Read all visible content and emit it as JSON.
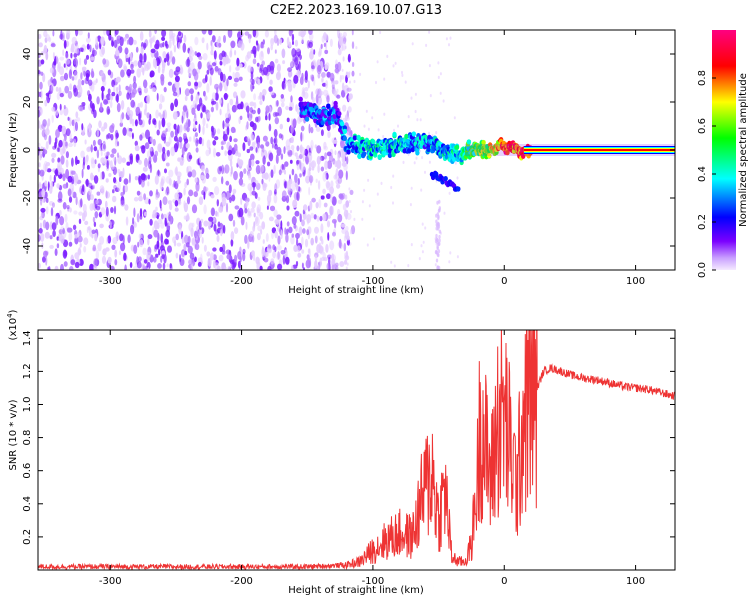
{
  "title": "C2E2.2023.169.10.07.G13",
  "chart_data": [
    {
      "type": "heatmap",
      "xlabel": "Height of straight line (km)",
      "ylabel": "Frequency (Hz)",
      "xlim": [
        -355,
        130
      ],
      "ylim": [
        -50,
        50
      ],
      "xticks": [
        -300,
        -200,
        -100,
        0,
        100
      ],
      "yticks": [
        -40,
        -20,
        0,
        20,
        40
      ],
      "colorbar": {
        "label": "Normalized spectral amplitude",
        "range": [
          0,
          1
        ],
        "ticks": [
          0.0,
          0.2,
          0.4,
          0.6,
          0.8
        ],
        "tick_labels": [
          "0.0",
          "0.2",
          "0.4",
          "0.6",
          "0.8"
        ],
        "colormap": [
          "#f5eaff",
          "#7b00ff",
          "#0000ff",
          "#00ffff",
          "#00ff00",
          "#ffff00",
          "#ff0000",
          "#ff0080"
        ]
      },
      "noise_region": {
        "x_range": [
          -355,
          -125
        ],
        "mean_amplitude": 0.15
      },
      "signal_track": {
        "x": [
          -155,
          -140,
          -128,
          -120,
          -100,
          -80,
          -60,
          -45,
          -35,
          -25,
          -15,
          -5,
          0,
          10,
          20,
          130
        ],
        "y": [
          18,
          14,
          16,
          3,
          0,
          3,
          3,
          0,
          -2,
          0,
          0,
          1,
          2,
          0,
          0,
          0
        ],
        "amplitude": [
          0.2,
          0.25,
          0.2,
          0.3,
          0.35,
          0.35,
          0.3,
          0.35,
          0.4,
          0.5,
          0.6,
          0.7,
          0.85,
          0.8,
          0.9,
          0.9
        ]
      },
      "secondary_track": {
        "x": [
          -55,
          -35
        ],
        "y": [
          -10,
          -16
        ],
        "amplitude": 0.15
      }
    },
    {
      "type": "line",
      "xlabel": "Height of straight line (km)",
      "ylabel": "SNR (10 * v/v)",
      "yscale_label": "(x10",
      "yscale_exponent": "4",
      "yscale_close": ")",
      "xlim": [
        -355,
        130
      ],
      "ylim": [
        0,
        1.45
      ],
      "xticks": [
        -300,
        -200,
        -100,
        0,
        100
      ],
      "yticks": [
        0.2,
        0.4,
        0.6,
        0.8,
        1.0,
        1.2,
        1.4
      ],
      "ytick_labels": [
        "0.2",
        "0.4",
        "0.6",
        "0.8",
        "1.0",
        "1.2",
        "1.4"
      ],
      "series": [
        {
          "color": "#ee3333",
          "x": [
            -355,
            -300,
            -250,
            -200,
            -150,
            -120,
            -110,
            -100,
            -90,
            -80,
            -70,
            -62,
            -55,
            -50,
            -45,
            -40,
            -35,
            -30,
            -25,
            -20,
            -18,
            -15,
            -10,
            -5,
            0,
            5,
            10,
            15,
            20,
            25,
            30,
            35,
            40,
            50,
            60,
            70,
            80,
            90,
            100,
            110,
            120,
            130
          ],
          "y": [
            0.02,
            0.02,
            0.02,
            0.02,
            0.02,
            0.03,
            0.05,
            0.12,
            0.18,
            0.22,
            0.2,
            0.45,
            0.6,
            0.3,
            0.5,
            0.08,
            0.05,
            0.05,
            0.15,
            0.6,
            1.0,
            0.75,
            0.55,
            0.9,
            0.95,
            0.7,
            0.5,
            1.0,
            1.05,
            1.1,
            1.2,
            1.22,
            1.21,
            1.18,
            1.16,
            1.15,
            1.13,
            1.11,
            1.1,
            1.09,
            1.07,
            1.05
          ]
        }
      ]
    }
  ]
}
